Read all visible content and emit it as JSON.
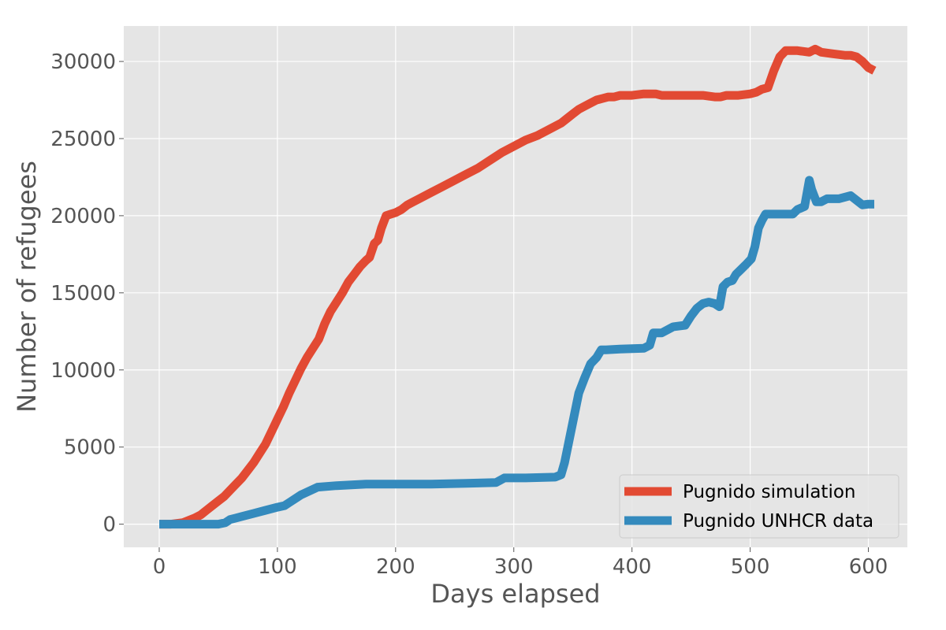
{
  "chart_data": {
    "type": "line",
    "title": "",
    "xlabel": "Days elapsed",
    "ylabel": "Number of refugees",
    "xlim": [
      -30,
      633
    ],
    "ylim": [
      -1500,
      32300
    ],
    "xticks": [
      0,
      100,
      200,
      300,
      400,
      500,
      600
    ],
    "yticks": [
      0,
      5000,
      10000,
      15000,
      20000,
      25000,
      30000
    ],
    "grid": true,
    "legend_position": "lower-right",
    "series": [
      {
        "name": "Pugnido simulation",
        "color": "#E24A33",
        "x": [
          0,
          10,
          20,
          25,
          30,
          35,
          40,
          45,
          50,
          55,
          60,
          65,
          70,
          75,
          80,
          85,
          90,
          95,
          100,
          105,
          110,
          115,
          120,
          125,
          130,
          135,
          140,
          145,
          150,
          155,
          160,
          165,
          170,
          175,
          178,
          182,
          185,
          188,
          192,
          196,
          200,
          205,
          210,
          215,
          220,
          230,
          240,
          250,
          260,
          270,
          280,
          290,
          300,
          310,
          320,
          330,
          340,
          345,
          350,
          355,
          360,
          365,
          370,
          375,
          380,
          385,
          390,
          395,
          400,
          410,
          420,
          425,
          430,
          440,
          450,
          460,
          470,
          475,
          480,
          490,
          500,
          505,
          510,
          515,
          520,
          525,
          530,
          540,
          550,
          555,
          560,
          570,
          580,
          585,
          590,
          595,
          600,
          605
        ],
        "y": [
          0,
          0,
          100,
          250,
          400,
          600,
          900,
          1200,
          1500,
          1800,
          2200,
          2600,
          3000,
          3500,
          4000,
          4600,
          5200,
          6000,
          6800,
          7600,
          8500,
          9300,
          10100,
          10800,
          11400,
          12000,
          13000,
          13800,
          14400,
          15000,
          15700,
          16200,
          16700,
          17100,
          17300,
          18200,
          18400,
          19200,
          20000,
          20100,
          20200,
          20400,
          20700,
          20900,
          21100,
          21500,
          21900,
          22300,
          22700,
          23100,
          23600,
          24100,
          24500,
          24900,
          25200,
          25600,
          26000,
          26300,
          26600,
          26900,
          27100,
          27300,
          27500,
          27600,
          27700,
          27700,
          27800,
          27800,
          27800,
          27900,
          27900,
          27800,
          27800,
          27800,
          27800,
          27800,
          27700,
          27700,
          27800,
          27800,
          27900,
          28000,
          28200,
          28300,
          29400,
          30300,
          30700,
          30700,
          30600,
          30800,
          30600,
          30500,
          30400,
          30400,
          30300,
          30000,
          29600,
          29400
        ]
      },
      {
        "name": "Pugnido UNHCR data",
        "color": "#348ABD",
        "x": [
          0,
          20,
          30,
          40,
          50,
          56,
          60,
          65,
          70,
          80,
          90,
          100,
          106,
          110,
          120,
          134,
          150,
          175,
          200,
          230,
          260,
          285,
          292,
          310,
          335,
          340,
          343,
          347,
          351,
          355,
          360,
          365,
          370,
          374,
          378,
          390,
          410,
          415,
          418,
          425,
          435,
          445,
          450,
          455,
          460,
          465,
          470,
          474,
          477,
          481,
          485,
          488,
          492,
          496,
          501,
          504,
          507,
          510,
          513,
          520,
          536,
          540,
          546,
          550,
          552,
          556,
          560,
          565,
          570,
          575,
          580,
          585,
          590,
          595,
          600,
          605
        ],
        "y": [
          0,
          0,
          0,
          0,
          0,
          100,
          300,
          400,
          500,
          700,
          900,
          1100,
          1200,
          1400,
          1900,
          2400,
          2500,
          2600,
          2600,
          2600,
          2650,
          2700,
          3000,
          3000,
          3050,
          3200,
          4000,
          5500,
          7000,
          8500,
          9500,
          10400,
          10800,
          11300,
          11300,
          11350,
          11400,
          11600,
          12400,
          12400,
          12800,
          12900,
          13500,
          14000,
          14300,
          14400,
          14300,
          14100,
          15400,
          15700,
          15800,
          16200,
          16500,
          16800,
          17200,
          18000,
          19200,
          19700,
          20100,
          20100,
          20100,
          20400,
          20600,
          22300,
          21700,
          20900,
          20900,
          21100,
          21100,
          21100,
          21200,
          21300,
          21000,
          20700,
          20750,
          20750
        ]
      }
    ]
  }
}
